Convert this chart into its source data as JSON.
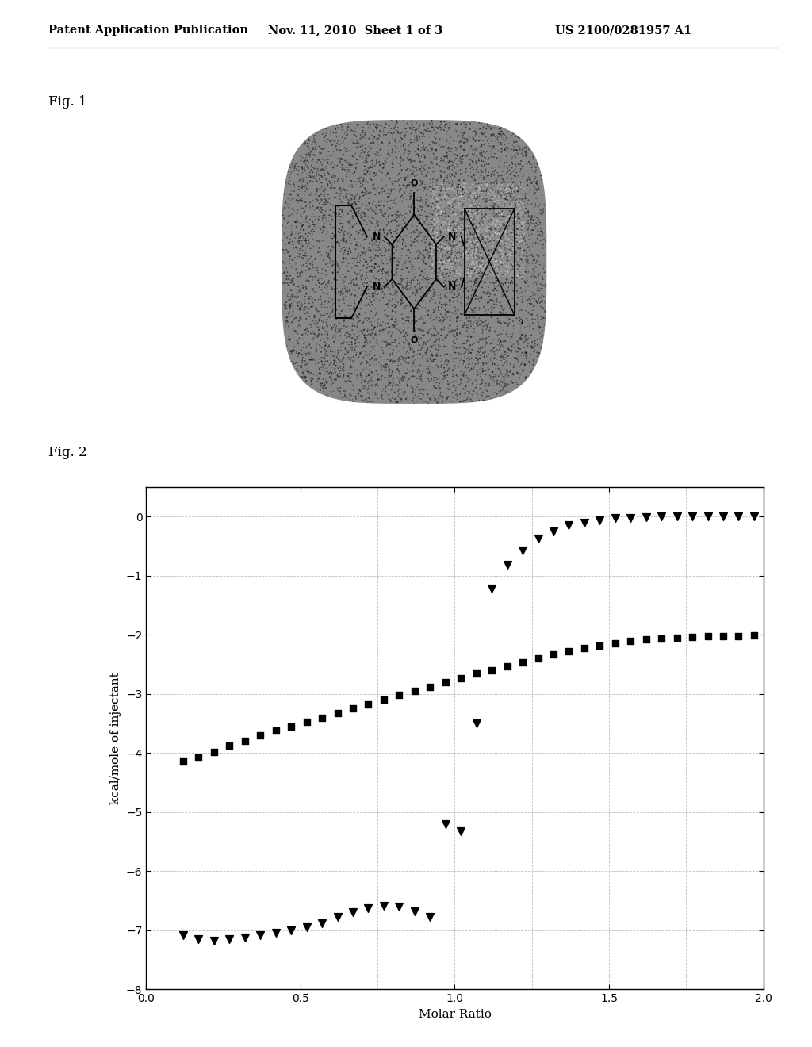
{
  "header_left": "Patent Application Publication",
  "header_mid": "Nov. 11, 2010  Sheet 1 of 3",
  "header_right": "US 2100/0281957 A1",
  "fig1_label": "Fig. 1",
  "fig2_label": "Fig. 2",
  "xlabel": "Molar Ratio",
  "ylabel": "kcal/mole of injectant",
  "xlim": [
    0.0,
    2.0
  ],
  "ylim": [
    -8,
    0.5
  ],
  "xticks": [
    0.0,
    0.5,
    1.0,
    1.5,
    2.0
  ],
  "yticks": [
    -8,
    -7,
    -6,
    -5,
    -4,
    -3,
    -2,
    -1,
    0
  ],
  "squares_x": [
    0.12,
    0.17,
    0.22,
    0.27,
    0.32,
    0.37,
    0.42,
    0.47,
    0.52,
    0.57,
    0.62,
    0.67,
    0.72,
    0.77,
    0.82,
    0.87,
    0.92,
    0.97,
    1.02,
    1.07,
    1.12,
    1.17,
    1.22,
    1.27,
    1.32,
    1.37,
    1.42,
    1.47,
    1.52,
    1.57,
    1.62,
    1.67,
    1.72,
    1.77,
    1.82,
    1.87,
    1.92,
    1.97
  ],
  "squares_y": [
    -4.15,
    -4.08,
    -3.98,
    -3.88,
    -3.8,
    -3.7,
    -3.62,
    -3.55,
    -3.48,
    -3.4,
    -3.33,
    -3.25,
    -3.18,
    -3.1,
    -3.02,
    -2.95,
    -2.88,
    -2.8,
    -2.73,
    -2.66,
    -2.6,
    -2.53,
    -2.47,
    -2.4,
    -2.34,
    -2.28,
    -2.23,
    -2.18,
    -2.14,
    -2.11,
    -2.08,
    -2.06,
    -2.05,
    -2.04,
    -2.03,
    -2.02,
    -2.02,
    -2.01
  ],
  "triangles_x": [
    0.12,
    0.17,
    0.22,
    0.27,
    0.32,
    0.37,
    0.42,
    0.47,
    0.52,
    0.57,
    0.62,
    0.67,
    0.72,
    0.77,
    0.82,
    0.87,
    0.92,
    0.97,
    1.02,
    1.07,
    1.12,
    1.17,
    1.22,
    1.27,
    1.32,
    1.37,
    1.42,
    1.47,
    1.52,
    1.57,
    1.62,
    1.67,
    1.72,
    1.77,
    1.82,
    1.87,
    1.92,
    1.97
  ],
  "triangles_y": [
    -7.08,
    -7.15,
    -7.17,
    -7.15,
    -7.12,
    -7.08,
    -7.04,
    -7.0,
    -6.95,
    -6.88,
    -6.78,
    -6.7,
    -6.63,
    -6.58,
    -6.6,
    -6.68,
    -6.78,
    -5.2,
    -5.32,
    -3.5,
    -1.22,
    -0.82,
    -0.57,
    -0.37,
    -0.25,
    -0.15,
    -0.1,
    -0.06,
    -0.03,
    -0.02,
    -0.01,
    0.0,
    0.0,
    0.0,
    0.0,
    0.0,
    0.0,
    0.0
  ],
  "background_color": "#ffffff",
  "plot_bg_color": "#ffffff",
  "marker_color": "#000000",
  "header_fontsize": 10.5,
  "fig_label_fontsize": 12,
  "axis_label_fontsize": 11,
  "tick_fontsize": 10
}
